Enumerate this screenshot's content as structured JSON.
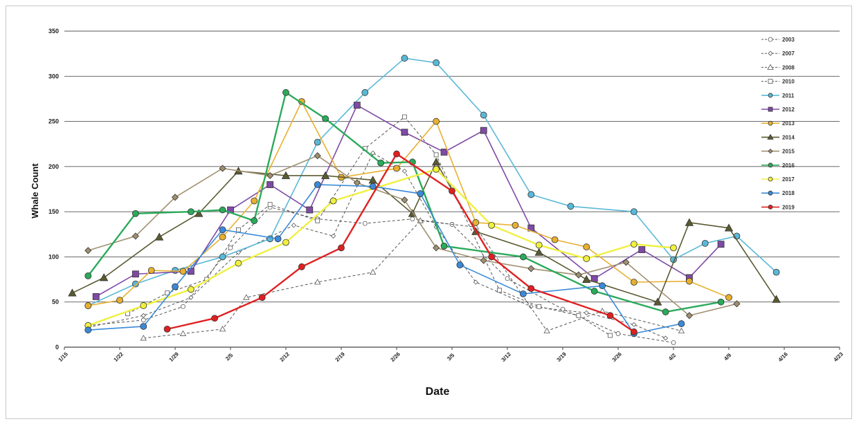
{
  "chart_data": {
    "type": "line",
    "title": "",
    "xlabel": "Date",
    "ylabel": "Whale Count",
    "ylim": [
      0,
      350
    ],
    "yticks": [
      0,
      50,
      100,
      150,
      200,
      250,
      300,
      350
    ],
    "x_tick_labels": [
      "1/15",
      "1/22",
      "1/29",
      "2/5",
      "2/12",
      "2/19",
      "2/26",
      "3/5",
      "3/12",
      "3/19",
      "3/26",
      "4/2",
      "4/9",
      "4/16",
      "4/23"
    ],
    "xlim_days": [
      0,
      98
    ],
    "grid": "horizontal",
    "legend_position": "right",
    "series": [
      {
        "name": "2003",
        "color": "#555555",
        "line_style": "dashed",
        "marker": "open-circle",
        "x": [
          "1/18",
          "1/25",
          "1/30",
          "2/5",
          "2/10",
          "2/16",
          "2/22",
          "2/28",
          "3/5",
          "3/12",
          "3/19",
          "3/26",
          "4/2"
        ],
        "y": [
          24,
          30,
          45,
          110,
          155,
          142,
          137,
          142,
          136,
          76,
          42,
          15,
          5
        ]
      },
      {
        "name": "2007",
        "color": "#555555",
        "line_style": "dashed",
        "marker": "open-diamond",
        "x": [
          "1/18",
          "1/25",
          "1/31",
          "2/6",
          "2/13",
          "2/18",
          "2/23",
          "2/27",
          "3/3",
          "3/8",
          "3/15",
          "3/22",
          "3/28",
          "4/1"
        ],
        "y": [
          22,
          35,
          55,
          105,
          135,
          123,
          215,
          195,
          133,
          72,
          45,
          38,
          25,
          10
        ]
      },
      {
        "name": "2008",
        "color": "#555555",
        "line_style": "dashed",
        "marker": "open-triangle",
        "x": [
          "1/25",
          "1/30",
          "2/4",
          "2/7",
          "2/16",
          "2/23",
          "3/1",
          "3/8",
          "3/17",
          "3/24",
          "4/3"
        ],
        "y": [
          10,
          15,
          20,
          55,
          72,
          83,
          140,
          133,
          18,
          40,
          18
        ]
      },
      {
        "name": "2010",
        "color": "#555555",
        "line_style": "dashed",
        "marker": "open-square",
        "x": [
          "1/23",
          "1/28",
          "2/2",
          "2/6",
          "2/10",
          "2/16",
          "2/22",
          "2/27",
          "3/3",
          "3/11",
          "3/16",
          "3/21",
          "3/25"
        ],
        "y": [
          37,
          60,
          75,
          130,
          158,
          140,
          220,
          255,
          213,
          63,
          45,
          35,
          13
        ]
      },
      {
        "name": "2011",
        "color": "#5ab8d8",
        "line_style": "solid",
        "marker": "circle",
        "x": [
          "1/18",
          "1/24",
          "1/29",
          "2/4",
          "2/10",
          "2/16",
          "2/22",
          "2/27",
          "3/3",
          "3/9",
          "3/15",
          "3/20",
          "3/28",
          "4/2",
          "4/6",
          "4/10",
          "4/15"
        ],
        "y": [
          46,
          70,
          85,
          100,
          120,
          227,
          282,
          320,
          315,
          257,
          169,
          156,
          150,
          97,
          115,
          123,
          83
        ]
      },
      {
        "name": "2012",
        "color": "#7f4aa6",
        "line_style": "solid",
        "marker": "square",
        "x": [
          "1/19",
          "1/24",
          "1/31",
          "2/5",
          "2/10",
          "2/15",
          "2/21",
          "2/27",
          "3/4",
          "3/9",
          "3/15",
          "3/23",
          "3/29",
          "4/4",
          "4/8"
        ],
        "y": [
          56,
          81,
          84,
          152,
          180,
          152,
          268,
          238,
          216,
          240,
          132,
          76,
          108,
          77,
          114
        ]
      },
      {
        "name": "2013",
        "color": "#e8b030",
        "line_style": "solid",
        "marker": "circle",
        "x": [
          "1/18",
          "1/22",
          "1/26",
          "1/30",
          "2/4",
          "2/8",
          "2/14",
          "2/19",
          "2/26",
          "3/3",
          "3/8",
          "3/13",
          "3/18",
          "3/22",
          "3/28",
          "4/4",
          "4/9"
        ],
        "y": [
          46,
          52,
          85,
          84,
          122,
          162,
          272,
          188,
          198,
          250,
          138,
          135,
          119,
          111,
          72,
          73,
          55
        ]
      },
      {
        "name": "2014",
        "color": "#5a5a32",
        "line_style": "solid",
        "marker": "triangle",
        "x": [
          "1/16",
          "1/20",
          "1/27",
          "2/1",
          "2/6",
          "2/12",
          "2/17",
          "2/23",
          "2/28",
          "3/3",
          "3/8",
          "3/16",
          "3/22",
          "3/31",
          "4/4",
          "4/9",
          "4/15"
        ],
        "y": [
          60,
          77,
          122,
          148,
          195,
          190,
          190,
          185,
          148,
          205,
          128,
          105,
          75,
          50,
          138,
          132,
          53
        ]
      },
      {
        "name": "2015",
        "color": "#a09070",
        "line_style": "solid",
        "marker": "diamond",
        "x": [
          "1/18",
          "1/24",
          "1/29",
          "2/4",
          "2/10",
          "2/16",
          "2/21",
          "2/27",
          "3/3",
          "3/9",
          "3/15",
          "3/21",
          "3/27",
          "4/4",
          "4/10"
        ],
        "y": [
          107,
          123,
          166,
          198,
          190,
          212,
          182,
          163,
          110,
          96,
          87,
          80,
          94,
          35,
          48
        ]
      },
      {
        "name": "2016",
        "color": "#2aaa5a",
        "line_style": "solid",
        "marker": "circle",
        "x": [
          "1/18",
          "1/24",
          "1/31",
          "2/4",
          "2/8",
          "2/12",
          "2/17",
          "2/24",
          "2/28",
          "3/4",
          "3/14",
          "3/23",
          "4/1",
          "4/8"
        ],
        "y": [
          79,
          148,
          150,
          152,
          140,
          282,
          253,
          204,
          205,
          112,
          100,
          62,
          39,
          50
        ]
      },
      {
        "name": "2017",
        "color": "#f0f040",
        "line_style": "solid",
        "marker": "circle",
        "x": [
          "1/18",
          "1/25",
          "1/31",
          "2/6",
          "2/12",
          "2/18",
          "3/3",
          "3/10",
          "3/16",
          "3/22",
          "3/28",
          "4/2"
        ],
        "y": [
          24,
          46,
          64,
          93,
          116,
          162,
          197,
          135,
          113,
          98,
          114,
          110
        ]
      },
      {
        "name": "2018",
        "color": "#3a8ad8",
        "line_style": "solid",
        "marker": "circle",
        "x": [
          "1/18",
          "1/25",
          "1/29",
          "2/4",
          "2/11",
          "2/16",
          "2/23",
          "2/29",
          "3/6",
          "3/14",
          "3/24",
          "3/28",
          "4/3"
        ],
        "y": [
          19,
          23,
          67,
          130,
          120,
          180,
          178,
          170,
          91,
          59,
          68,
          15,
          26
        ]
      },
      {
        "name": "2019",
        "color": "#e02020",
        "line_style": "solid",
        "marker": "circle",
        "x": [
          "1/28",
          "2/3",
          "2/9",
          "2/14",
          "2/19",
          "2/26",
          "3/5",
          "3/10",
          "3/15",
          "3/25",
          "3/28"
        ],
        "y": [
          20,
          32,
          55,
          89,
          110,
          214,
          173,
          100,
          65,
          35,
          17
        ]
      }
    ]
  }
}
